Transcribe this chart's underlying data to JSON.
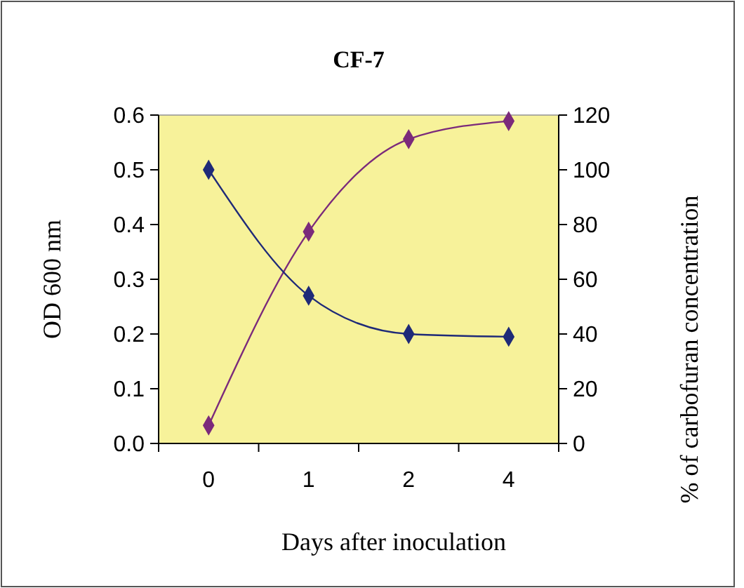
{
  "chart_data": {
    "type": "line",
    "title": "CF-7",
    "xlabel": "Days after inoculation",
    "ylabel": "OD 600 nm",
    "y2label": "% of carbofuran concentration",
    "categories": [
      "0",
      "1",
      "2",
      "4"
    ],
    "series": [
      {
        "color": "#7b2a7b",
        "values": [
          0.033,
          0.387,
          0.556,
          0.589
        ]
      },
      {
        "color": "#1f2a78",
        "axis": "y2",
        "values": [
          100,
          54,
          40,
          39
        ]
      }
    ],
    "ylim": [
      0,
      0.6
    ],
    "yticks": [
      {
        "value": 0,
        "label": "0.0"
      },
      0.1,
      0.2,
      0.3,
      0.4,
      0.5,
      0.6
    ],
    "y2lim": [
      0,
      120
    ],
    "y2ticks": [
      0,
      20,
      40,
      60,
      80,
      100,
      120
    ],
    "marker": "diamond",
    "line_style": "solid",
    "grid": false
  }
}
